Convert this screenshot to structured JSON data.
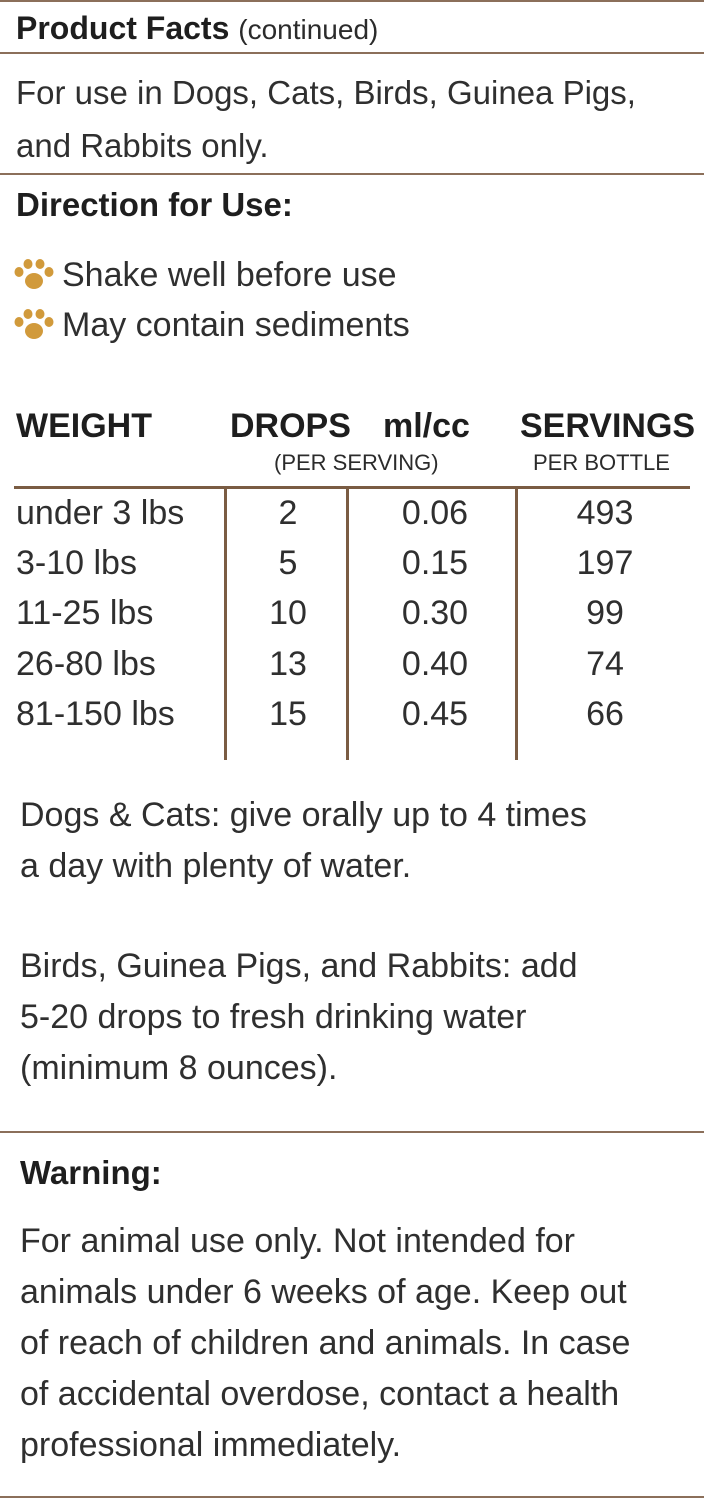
{
  "header": {
    "title": "Product Facts",
    "subtitle": "(continued)"
  },
  "usage": {
    "line1": "For use in Dogs, Cats, Birds, Guinea Pigs,",
    "line2": "and Rabbits only."
  },
  "directions": {
    "title": "Direction for Use:",
    "bullets": [
      "Shake well before use",
      "May contain sediments"
    ]
  },
  "dosage_table": {
    "headers": {
      "weight": "WEIGHT",
      "drops": "DROPS",
      "ml": "ml/cc",
      "servings": "SERVINGS",
      "drops_ml_sub": "(PER SERVING)",
      "servings_sub": "PER BOTTLE"
    },
    "rows": [
      {
        "weight": "under 3 lbs",
        "drops": "2",
        "ml": "0.06",
        "servings": "493"
      },
      {
        "weight": "3-10 lbs",
        "drops": "5",
        "ml": "0.15",
        "servings": "197"
      },
      {
        "weight": "11-25 lbs",
        "drops": "10",
        "ml": "0.30",
        "servings": "99"
      },
      {
        "weight": "26-80 lbs",
        "drops": "13",
        "ml": "0.40",
        "servings": "74"
      },
      {
        "weight": "81-150 lbs",
        "drops": "15",
        "ml": "0.45",
        "servings": "66"
      }
    ]
  },
  "dogs_cats": {
    "line1": "Dogs & Cats: give orally up to 4 times",
    "line2": "a day with plenty of water."
  },
  "small_animals": {
    "line1": "Birds, Guinea Pigs, and Rabbits: add",
    "line2": "5-20 drops to fresh drinking water",
    "line3": "(minimum 8 ounces)."
  },
  "warning": {
    "title": "Warning:",
    "line1": "For animal use only. Not intended for",
    "line2": "animals under 6 weeks of age. Keep out",
    "line3": "of reach of children and animals. In case",
    "line4": "of accidental overdose, contact a health",
    "line5": "professional immediately."
  },
  "colors": {
    "rule": "#8b6f5a",
    "table_rule": "#7a5c43",
    "paw": "#d19a3b"
  },
  "icons": {
    "bullet": "paw-print-icon"
  }
}
